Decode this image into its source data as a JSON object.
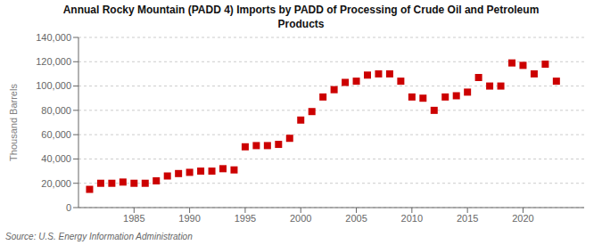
{
  "chart_data": {
    "type": "scatter",
    "title": "Annual Rocky Mountain (PADD 4) Imports by PADD of Processing of Crude Oil and Petroleum\nProducts",
    "y_label": "Thousand Barrels",
    "annotations": [
      "Source: U.S. Energy Information Administration"
    ],
    "x": [
      1981,
      1982,
      1983,
      1984,
      1985,
      1986,
      1987,
      1988,
      1989,
      1990,
      1991,
      1992,
      1993,
      1994,
      1995,
      1996,
      1997,
      1998,
      1999,
      2000,
      2001,
      2002,
      2003,
      2004,
      2005,
      2006,
      2007,
      2008,
      2009,
      2010,
      2011,
      2012,
      2013,
      2014,
      2015,
      2016,
      2017,
      2018,
      2019,
      2020,
      2021,
      2022,
      2023
    ],
    "values": [
      15000,
      20000,
      20000,
      21000,
      20000,
      20000,
      22000,
      26000,
      28000,
      29000,
      30000,
      30000,
      32000,
      31000,
      50000,
      51000,
      51000,
      52000,
      57000,
      72000,
      79000,
      91000,
      97000,
      103000,
      104000,
      109000,
      110000,
      110000,
      104000,
      91000,
      90000,
      80000,
      91000,
      92000,
      95000,
      107000,
      100000,
      100000,
      119000,
      117000,
      110000,
      118000,
      104000
    ],
    "color": "#cc0000",
    "marker": "square",
    "xlim": [
      1980,
      2025.5
    ],
    "xticks": [
      1985,
      1990,
      1995,
      2000,
      2005,
      2010,
      2015,
      2020
    ],
    "ylim": [
      0,
      140000
    ],
    "yticks": [
      0,
      {
        "value": 20000,
        "label": "20,000"
      },
      {
        "value": 40000,
        "label": "40,000"
      },
      {
        "value": 60000,
        "label": "60,000"
      },
      {
        "value": 80000,
        "label": "80,000"
      },
      {
        "value": 100000,
        "label": "100,000"
      },
      {
        "value": 120000,
        "label": "120,000"
      },
      {
        "value": 140000,
        "label": "140,000"
      }
    ],
    "grid": true
  }
}
